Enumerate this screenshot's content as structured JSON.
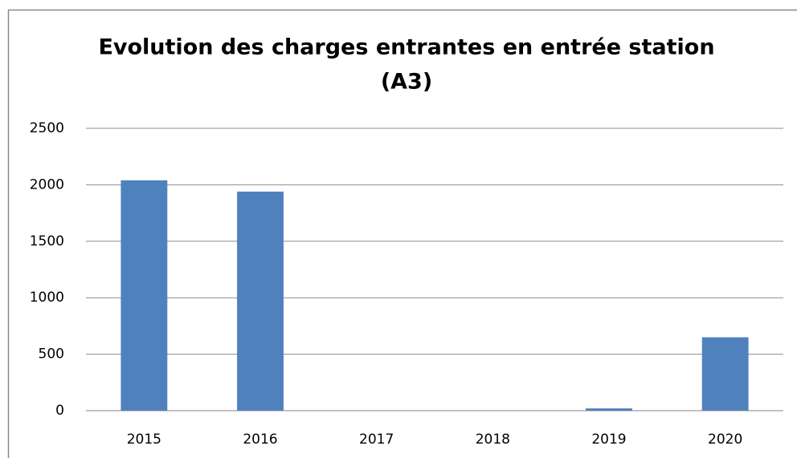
{
  "chart_data": {
    "type": "bar",
    "title": [
      "Evolution des charges entrantes en entrée station",
      "(A3)"
    ],
    "categories": [
      "2015",
      "2016",
      "2017",
      "2018",
      "2019",
      "2020"
    ],
    "values": [
      2040,
      1940,
      0,
      0,
      20,
      650
    ],
    "color": "#4f81bd",
    "ylim": [
      0,
      2500
    ],
    "yticks": [
      0,
      500,
      1000,
      1500,
      2000,
      2500
    ],
    "grid": true
  }
}
